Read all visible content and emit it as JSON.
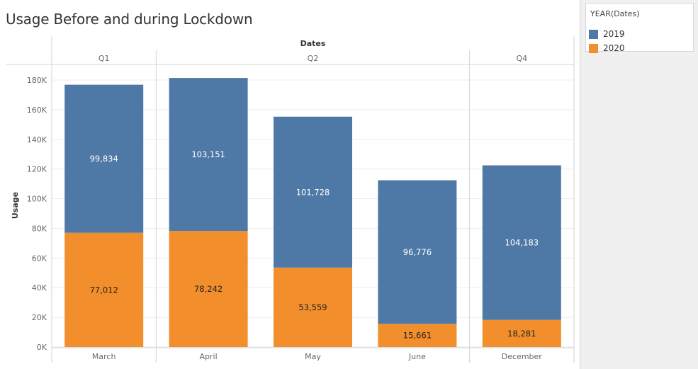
{
  "sheet": {
    "title": "Usage Before and during Lockdown"
  },
  "legend": {
    "title": "YEAR(Dates)",
    "items": [
      {
        "label": "2019",
        "color": "#4e79a7"
      },
      {
        "label": "2020",
        "color": "#f28e2b"
      }
    ]
  },
  "chart_data": {
    "type": "bar",
    "stacked": true,
    "title": "Usage Before and during Lockdown",
    "column_header": "Dates",
    "groups": [
      {
        "label": "Q1",
        "categories": [
          "March"
        ]
      },
      {
        "label": "Q2",
        "categories": [
          "April",
          "May",
          "June"
        ]
      },
      {
        "label": "Q4",
        "categories": [
          "December"
        ]
      }
    ],
    "categories": [
      "March",
      "April",
      "May",
      "June",
      "December"
    ],
    "series": [
      {
        "name": "2020",
        "color": "#f28e2b",
        "values": [
          77012,
          78242,
          53559,
          15661,
          18281
        ],
        "labels": [
          "77,012",
          "78,242",
          "53,559",
          "15,661",
          "18,281"
        ]
      },
      {
        "name": "2019",
        "color": "#4e79a7",
        "values": [
          99834,
          103151,
          101728,
          96776,
          104183
        ],
        "labels": [
          "99,834",
          "103,151",
          "101,728",
          "96,776",
          "104,183"
        ]
      }
    ],
    "ylabel": "Usage",
    "xlabel": "",
    "ylim": [
      0,
      190000
    ],
    "yticks": [
      {
        "value": 0,
        "label": "0K"
      },
      {
        "value": 20000,
        "label": "20K"
      },
      {
        "value": 40000,
        "label": "40K"
      },
      {
        "value": 60000,
        "label": "60K"
      },
      {
        "value": 80000,
        "label": "80K"
      },
      {
        "value": 100000,
        "label": "100K"
      },
      {
        "value": 120000,
        "label": "120K"
      },
      {
        "value": 140000,
        "label": "140K"
      },
      {
        "value": 160000,
        "label": "160K"
      },
      {
        "value": 180000,
        "label": "180K"
      }
    ],
    "grid": true,
    "legend_position": "right"
  }
}
